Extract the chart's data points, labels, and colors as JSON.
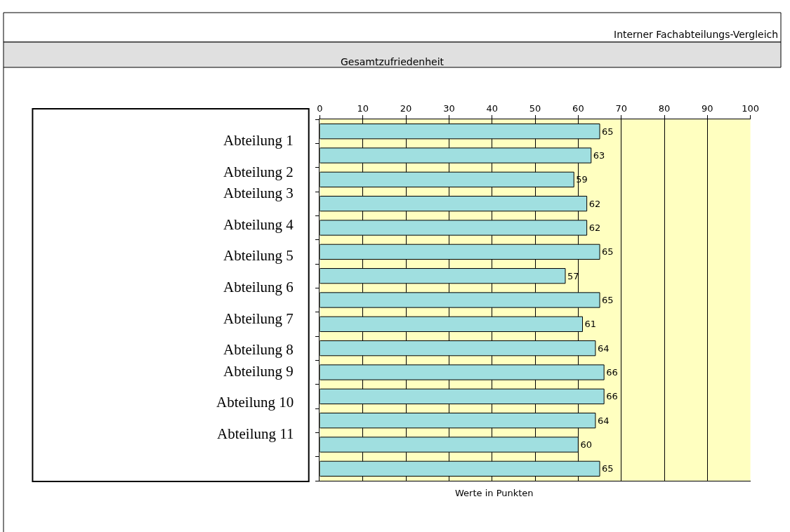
{
  "chart_data": {
    "type": "bar",
    "orientation": "horizontal",
    "title": "Gesamtzufriedenheit",
    "subtitle": "Interner Fachabteilungs-Vergleich",
    "xlabel": "Werte in Punkten",
    "categories": [
      null,
      null,
      null,
      null,
      null,
      null,
      null,
      null,
      null,
      null,
      null,
      null,
      null,
      null,
      null
    ],
    "values": [
      65,
      63,
      59,
      62,
      62,
      65,
      57,
      65,
      61,
      64,
      66,
      66,
      64,
      60,
      65
    ],
    "color": "#a0dfe0",
    "data_labels": true,
    "grid": "x",
    "xlim": [
      0,
      100
    ],
    "xticks": [
      0,
      10,
      20,
      30,
      40,
      50,
      60,
      70,
      80,
      90,
      100
    ],
    "annotations": [
      "Abteilung 1",
      "Abteilung 2",
      "Abteilung 3",
      "Abteilung 4",
      "Abteilung 5",
      "Abteilung 6",
      "Abteilung 7",
      "Abteilung 8",
      "Abteilung 9",
      "Abteilung 10",
      "Abteilung 11"
    ]
  }
}
